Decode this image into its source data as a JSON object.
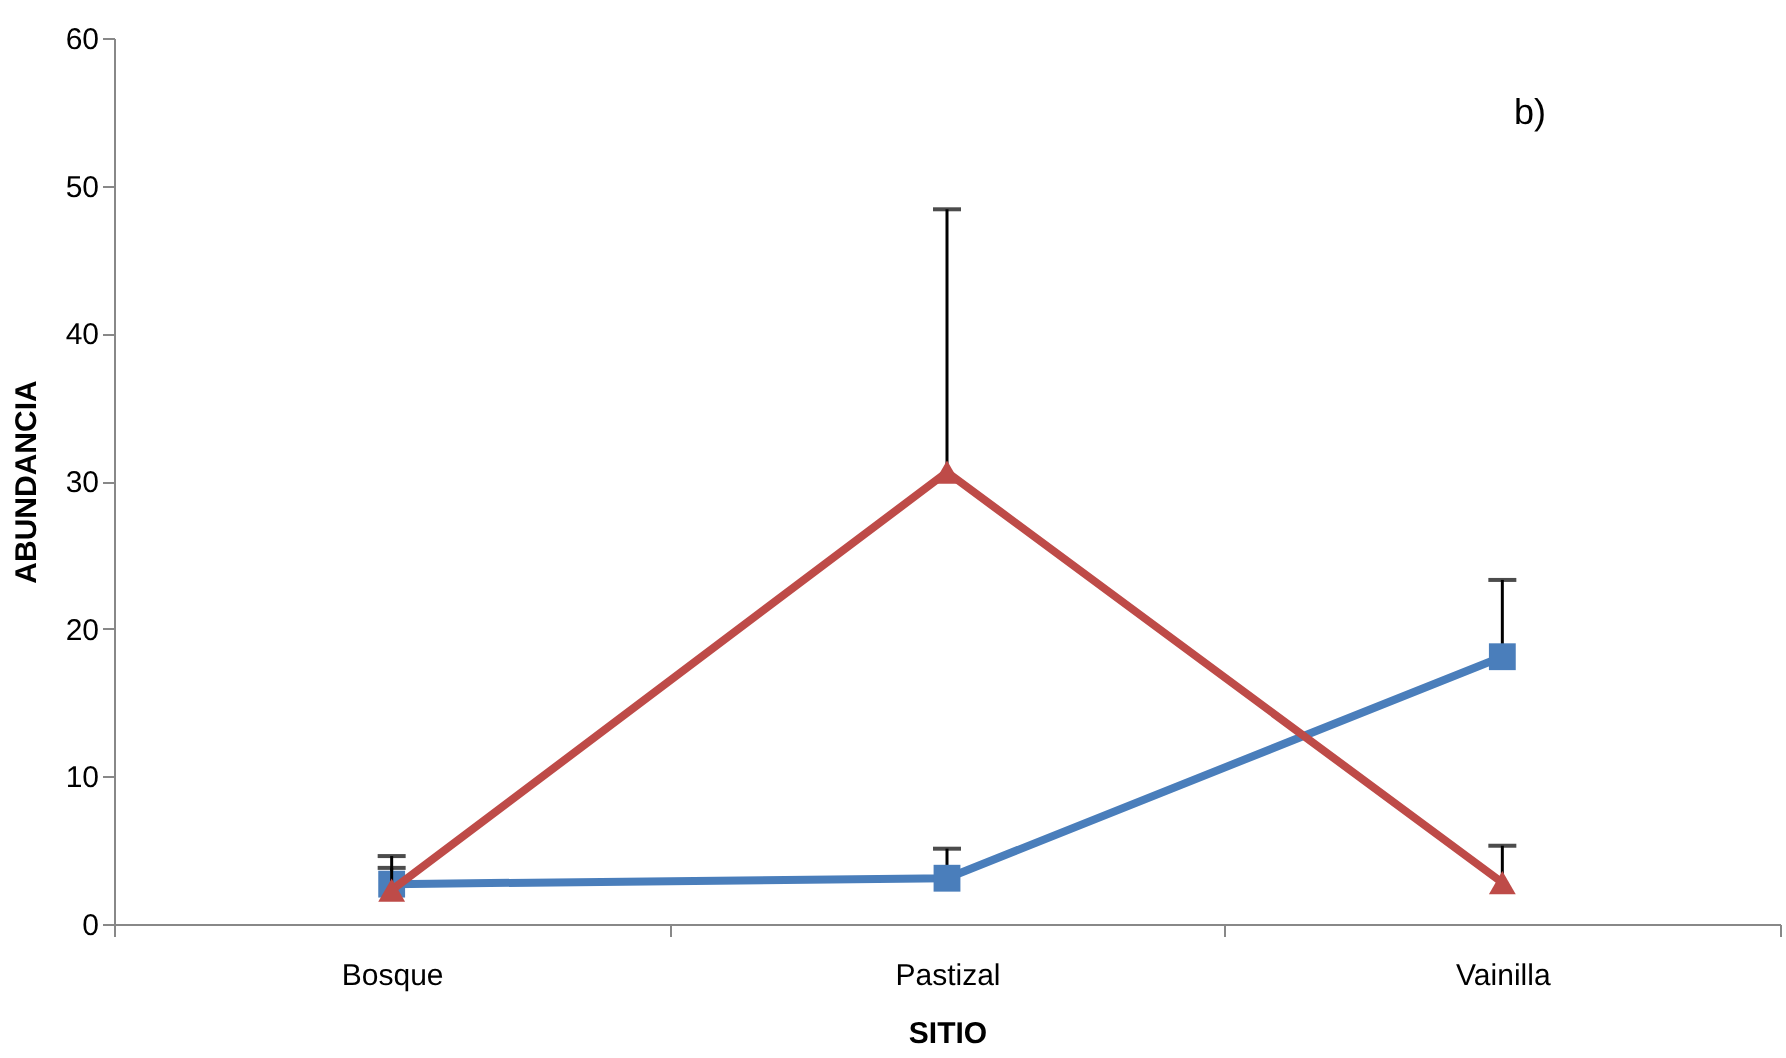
{
  "chart_data": {
    "type": "line",
    "xlabel": "SITIO",
    "ylabel": "ABUNDANCIA",
    "categories": [
      "Bosque",
      "Pastizal",
      "Vainilla"
    ],
    "series": [
      {
        "color": "#4a7ebb",
        "marker": "square",
        "values": [
          2.7,
          3.1,
          18.1
        ],
        "errors": [
          [
            2.7,
            4.6
          ],
          [
            3.1,
            5.1
          ],
          [
            18.1,
            23.3
          ]
        ]
      },
      {
        "color": "#be4b48",
        "marker": "triangle",
        "values": [
          2.3,
          30.6,
          2.8
        ],
        "errors": [
          [
            2.3,
            3.8
          ],
          [
            30.6,
            48.4
          ],
          [
            2.8,
            5.3
          ]
        ]
      }
    ],
    "ylim": [
      0,
      60
    ],
    "yticks": [
      0,
      10,
      20,
      30,
      40,
      50,
      60
    ],
    "grid": false,
    "annotations": [
      "b)"
    ]
  }
}
